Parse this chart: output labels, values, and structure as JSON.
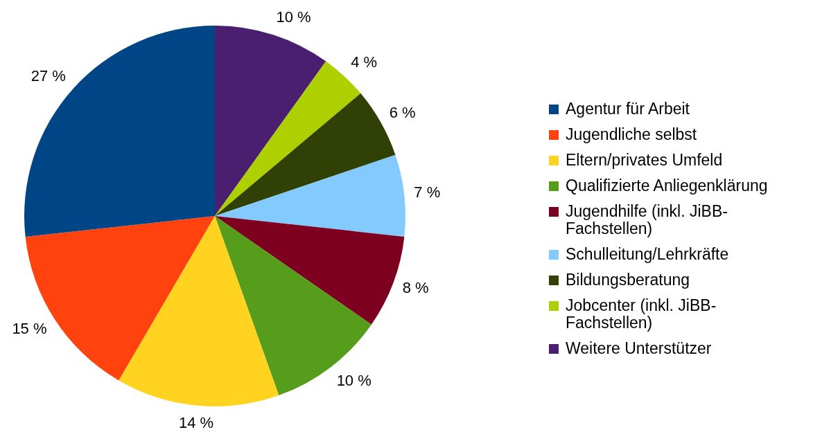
{
  "chart_data": {
    "type": "pie",
    "categories": [
      "Agentur für Arbeit",
      "Jugendliche selbst",
      "Eltern/privates Umfeld",
      "Qualifizierte Anliegenklärung",
      "Jugendhilfe (inkl. JiBB-Fachstellen)",
      "Schulleitung/Lehrkräfte",
      "Bildungsberatung",
      "Jobcenter (inkl. JiBB-Fachstellen)",
      "Weitere Unterstützer"
    ],
    "values": [
      27,
      15,
      14,
      10,
      8,
      7,
      6,
      4,
      10
    ],
    "value_labels": [
      "27 %",
      "15 %",
      "14 %",
      "10 %",
      "8 %",
      "7 %",
      "6 %",
      "4 %",
      "10 %"
    ],
    "colors": [
      "#004586",
      "#ff420e",
      "#ffd320",
      "#579d1c",
      "#7e0021",
      "#83caff",
      "#314004",
      "#aecf00",
      "#4b1f6f"
    ],
    "legend": "right"
  }
}
